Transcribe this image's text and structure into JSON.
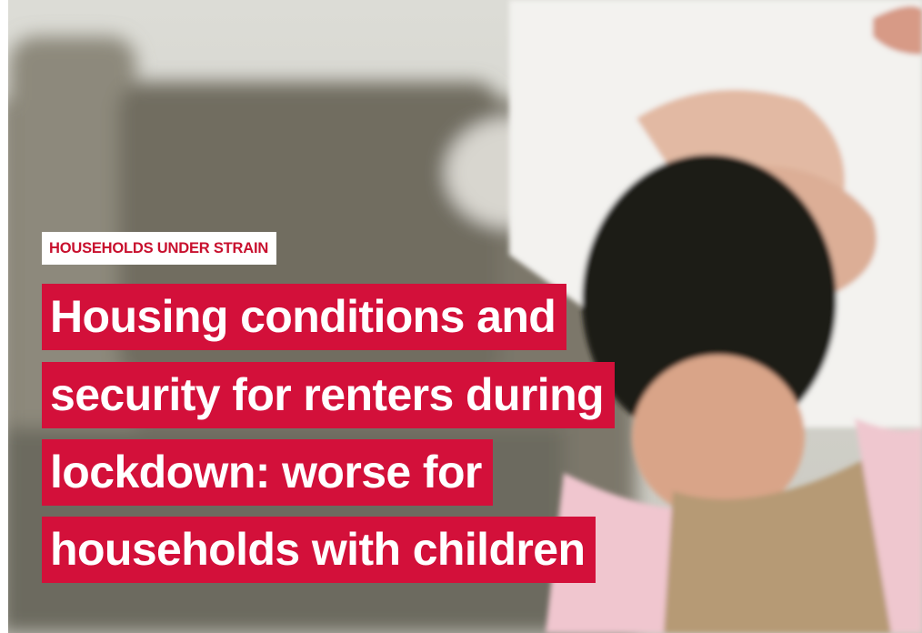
{
  "label": "HOUSEHOLDS UNDER STRAIN",
  "headline": [
    "Housing conditions and",
    "security for renters during",
    "lockdown: worse for",
    "households with children"
  ]
}
